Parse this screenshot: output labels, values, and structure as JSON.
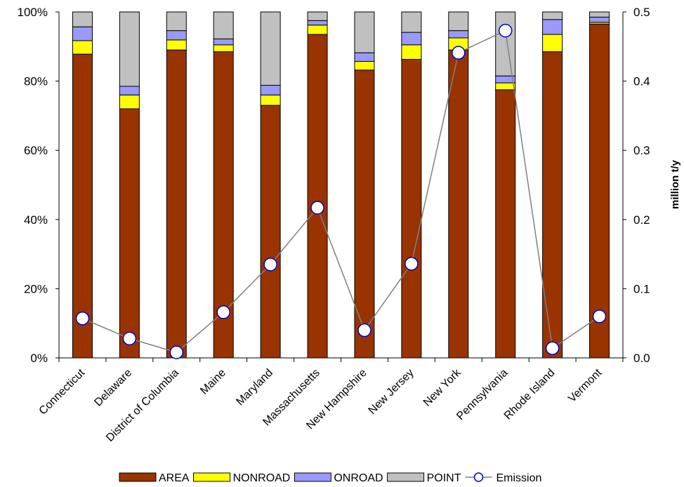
{
  "chart_data": {
    "type": "bar",
    "stacked": true,
    "normalized_percent": true,
    "categories": [
      "Connecticut",
      "Delaware",
      "District of Columbia",
      "Maine",
      "Maryland",
      "Massachusetts",
      "New Hampshire",
      "New Jersey",
      "New York",
      "Pennsylvania",
      "Rhode Island",
      "Vermont"
    ],
    "series": [
      {
        "name": "AREA",
        "color": "#993300",
        "values": [
          87.8,
          72.0,
          89.0,
          88.5,
          73.0,
          93.5,
          83.2,
          86.3,
          89.0,
          77.5,
          88.5,
          96.5
        ]
      },
      {
        "name": "NONROAD",
        "color": "#ffff00",
        "values": [
          3.9,
          4.0,
          2.9,
          2.0,
          3.0,
          2.7,
          2.5,
          4.2,
          3.5,
          2.0,
          5.0,
          0.5
        ]
      },
      {
        "name": "ONROAD",
        "color": "#9999ff",
        "values": [
          4.0,
          2.5,
          2.7,
          1.7,
          2.8,
          1.3,
          2.5,
          3.6,
          2.1,
          2.0,
          4.3,
          1.5
        ]
      },
      {
        "name": "POINT",
        "color": "#c0c0c0",
        "values": [
          4.3,
          21.5,
          5.4,
          7.8,
          21.2,
          2.5,
          11.8,
          5.9,
          5.4,
          18.5,
          2.2,
          1.5
        ]
      }
    ],
    "line_series": {
      "name": "Emission",
      "color": "#808080",
      "marker_color": "#0000cc",
      "axis": "right",
      "values": [
        0.057,
        0.028,
        0.008,
        0.066,
        0.135,
        0.217,
        0.04,
        0.136,
        0.441,
        0.473,
        0.014,
        0.06
      ]
    },
    "y_left": {
      "ticks": [
        "0%",
        "20%",
        "40%",
        "60%",
        "80%",
        "100%"
      ],
      "range": [
        0,
        100
      ]
    },
    "y_right": {
      "label": "million t/y",
      "ticks": [
        "0.0",
        "0.1",
        "0.2",
        "0.3",
        "0.4",
        "0.5"
      ],
      "range": [
        0,
        0.5
      ]
    },
    "legend": {
      "position": "bottom",
      "items": [
        "AREA",
        "NONROAD",
        "ONROAD",
        "POINT",
        "Emission"
      ]
    },
    "grid": false
  }
}
